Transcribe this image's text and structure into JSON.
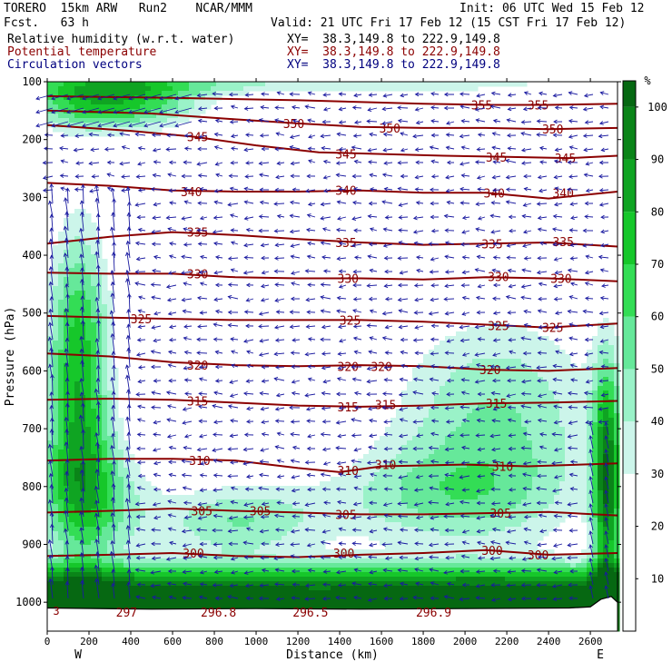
{
  "header": {
    "model": "TORERO  15km ARW   Run2    NCAR/MMM",
    "fcst": "Fcst.   63 h",
    "init": "Init: 06 UTC Wed 15 Feb 12",
    "valid": "Valid: 21 UTC Fri 17 Feb 12 (15 CST Fri 17 Feb 12)",
    "fields": [
      {
        "label": "Relative humidity (w.r.t. water)",
        "xy": "XY=  38.3,149.8 to 222.9,149.8",
        "color": "#000000"
      },
      {
        "label": "Potential temperature",
        "xy": "XY=  38.3,149.8 to 222.9,149.8",
        "color": "#8b0000"
      },
      {
        "label": "Circulation vectors",
        "xy": "XY=  38.3,149.8 to 222.9,149.8",
        "color": "#00007f"
      }
    ]
  },
  "chart_data": {
    "type": "heatmap",
    "xlabel": "Distance (km)",
    "ylabel": "Pressure (hPa)",
    "xlim": [
      0,
      2730
    ],
    "ylim": [
      1050,
      100
    ],
    "x_ticks": [
      0,
      200,
      400,
      600,
      800,
      1000,
      1200,
      1400,
      1600,
      1800,
      2000,
      2200,
      2400,
      2600
    ],
    "y_ticks": [
      100,
      200,
      300,
      400,
      500,
      600,
      700,
      800,
      900,
      1000
    ],
    "x_end_labels": {
      "left": "W",
      "right": "E"
    },
    "colorbar": {
      "unit": "%",
      "ticks": [
        10,
        20,
        30,
        40,
        50,
        60,
        70,
        80,
        90,
        100
      ],
      "bands": [
        {
          "from": 0,
          "to": 30,
          "color": "#ffffff"
        },
        {
          "from": 30,
          "to": 40,
          "color": "#ccf5ea"
        },
        {
          "from": 40,
          "to": 50,
          "color": "#9af2c8"
        },
        {
          "from": 50,
          "to": 60,
          "color": "#66e89a"
        },
        {
          "from": 60,
          "to": 70,
          "color": "#33dd55"
        },
        {
          "from": 70,
          "to": 80,
          "color": "#16c72a"
        },
        {
          "from": 80,
          "to": 90,
          "color": "#0fa422"
        },
        {
          "from": 90,
          "to": 100,
          "color": "#0a8418"
        },
        {
          "from": 100,
          "to": 105,
          "color": "#066812"
        }
      ]
    },
    "theta_contours": [
      {
        "theta": 300,
        "label_at": [
          [
            700,
            915
          ],
          [
            1420,
            915
          ],
          [
            2130,
            910
          ],
          [
            2350,
            918
          ]
        ],
        "path": [
          [
            0,
            920
          ],
          [
            300,
            918
          ],
          [
            600,
            915
          ],
          [
            900,
            920
          ],
          [
            1200,
            922
          ],
          [
            1500,
            918
          ],
          [
            1800,
            915
          ],
          [
            2100,
            910
          ],
          [
            2400,
            918
          ],
          [
            2730,
            915
          ]
        ]
      },
      {
        "theta": 305,
        "label_at": [
          [
            740,
            842
          ],
          [
            1020,
            842
          ],
          [
            1430,
            848
          ],
          [
            2170,
            846
          ]
        ],
        "path": [
          [
            0,
            845
          ],
          [
            300,
            842
          ],
          [
            600,
            838
          ],
          [
            900,
            842
          ],
          [
            1200,
            845
          ],
          [
            1500,
            848
          ],
          [
            1800,
            848
          ],
          [
            2100,
            846
          ],
          [
            2400,
            844
          ],
          [
            2730,
            850
          ]
        ]
      },
      {
        "theta": 310,
        "label_at": [
          [
            730,
            755
          ],
          [
            1440,
            772
          ],
          [
            1620,
            762
          ],
          [
            2180,
            765
          ]
        ],
        "path": [
          [
            0,
            755
          ],
          [
            300,
            752
          ],
          [
            600,
            752
          ],
          [
            900,
            755
          ],
          [
            1200,
            768
          ],
          [
            1400,
            775
          ],
          [
            1600,
            765
          ],
          [
            2000,
            762
          ],
          [
            2300,
            765
          ],
          [
            2730,
            760
          ]
        ]
      },
      {
        "theta": 315,
        "label_at": [
          [
            720,
            652
          ],
          [
            1440,
            662
          ],
          [
            1620,
            658
          ],
          [
            2150,
            656
          ]
        ],
        "path": [
          [
            0,
            650
          ],
          [
            300,
            648
          ],
          [
            600,
            650
          ],
          [
            900,
            655
          ],
          [
            1200,
            660
          ],
          [
            1500,
            662
          ],
          [
            1800,
            660
          ],
          [
            2100,
            656
          ],
          [
            2400,
            655
          ],
          [
            2730,
            652
          ]
        ]
      },
      {
        "theta": 320,
        "label_at": [
          [
            720,
            590
          ],
          [
            1440,
            592
          ],
          [
            1600,
            592
          ],
          [
            2120,
            598
          ]
        ],
        "path": [
          [
            0,
            570
          ],
          [
            300,
            575
          ],
          [
            600,
            585
          ],
          [
            900,
            590
          ],
          [
            1200,
            592
          ],
          [
            1500,
            590
          ],
          [
            1800,
            592
          ],
          [
            2100,
            598
          ],
          [
            2400,
            600
          ],
          [
            2730,
            595
          ]
        ]
      },
      {
        "theta": 325,
        "label_at": [
          [
            450,
            510
          ],
          [
            1450,
            512
          ],
          [
            2160,
            522
          ],
          [
            2420,
            525
          ]
        ],
        "path": [
          [
            0,
            505
          ],
          [
            300,
            508
          ],
          [
            600,
            510
          ],
          [
            900,
            512
          ],
          [
            1200,
            512
          ],
          [
            1500,
            512
          ],
          [
            1800,
            515
          ],
          [
            2100,
            520
          ],
          [
            2400,
            525
          ],
          [
            2730,
            518
          ]
        ]
      },
      {
        "theta": 330,
        "label_at": [
          [
            720,
            432
          ],
          [
            1440,
            440
          ],
          [
            2160,
            437
          ],
          [
            2460,
            440
          ]
        ],
        "path": [
          [
            0,
            430
          ],
          [
            300,
            432
          ],
          [
            600,
            432
          ],
          [
            900,
            438
          ],
          [
            1200,
            440
          ],
          [
            1500,
            440
          ],
          [
            1800,
            442
          ],
          [
            2100,
            438
          ],
          [
            2400,
            440
          ],
          [
            2730,
            445
          ]
        ]
      },
      {
        "theta": 335,
        "label_at": [
          [
            720,
            360
          ],
          [
            1430,
            378
          ],
          [
            2130,
            380
          ],
          [
            2470,
            376
          ]
        ],
        "path": [
          [
            0,
            380
          ],
          [
            300,
            368
          ],
          [
            600,
            360
          ],
          [
            900,
            365
          ],
          [
            1200,
            372
          ],
          [
            1500,
            378
          ],
          [
            1800,
            382
          ],
          [
            2100,
            380
          ],
          [
            2400,
            378
          ],
          [
            2730,
            385
          ]
        ]
      },
      {
        "theta": 340,
        "label_at": [
          [
            690,
            290
          ],
          [
            1430,
            288
          ],
          [
            2140,
            292
          ],
          [
            2470,
            292
          ]
        ],
        "path": [
          [
            0,
            275
          ],
          [
            300,
            280
          ],
          [
            600,
            288
          ],
          [
            900,
            290
          ],
          [
            1200,
            290
          ],
          [
            1500,
            288
          ],
          [
            1800,
            292
          ],
          [
            2100,
            292
          ],
          [
            2400,
            302
          ],
          [
            2730,
            290
          ]
        ]
      },
      {
        "theta": 345,
        "label_at": [
          [
            720,
            195
          ],
          [
            1430,
            225
          ],
          [
            2150,
            230
          ],
          [
            2480,
            232
          ]
        ],
        "path": [
          [
            0,
            175
          ],
          [
            400,
            185
          ],
          [
            700,
            195
          ],
          [
            1000,
            210
          ],
          [
            1300,
            222
          ],
          [
            1600,
            225
          ],
          [
            1900,
            228
          ],
          [
            2200,
            230
          ],
          [
            2500,
            232
          ],
          [
            2730,
            228
          ]
        ]
      },
      {
        "theta": 350,
        "label_at": [
          [
            1180,
            172
          ],
          [
            1640,
            180
          ],
          [
            2420,
            182
          ]
        ],
        "path": [
          [
            0,
            150
          ],
          [
            500,
            155
          ],
          [
            900,
            165
          ],
          [
            1200,
            172
          ],
          [
            1500,
            178
          ],
          [
            1800,
            180
          ],
          [
            2100,
            180
          ],
          [
            2400,
            182
          ],
          [
            2730,
            180
          ]
        ]
      },
      {
        "theta": 355,
        "label_at": [
          [
            2080,
            140
          ],
          [
            2350,
            140
          ]
        ],
        "path": [
          [
            0,
            125
          ],
          [
            600,
            128
          ],
          [
            1200,
            132
          ],
          [
            1800,
            138
          ],
          [
            2100,
            140
          ],
          [
            2400,
            140
          ],
          [
            2730,
            138
          ]
        ]
      }
    ],
    "bottom_theta_labels": [
      {
        "text": "297",
        "x": 380
      },
      {
        "text": "296.8",
        "x": 820
      },
      {
        "text": "296.5",
        "x": 1260
      },
      {
        "text": "296.9",
        "x": 1850
      }
    ],
    "corner_label": "3"
  }
}
